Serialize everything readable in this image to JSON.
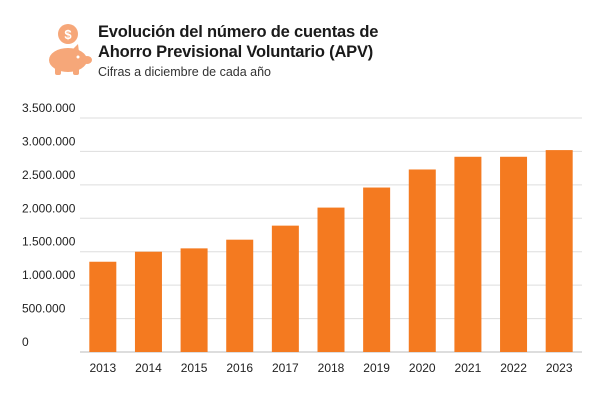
{
  "header": {
    "title_line1": "Evolución del número de cuentas de",
    "title_line2": "Ahorro Previsional Voluntario (APV)",
    "subtitle": "Cifras a diciembre de cada año",
    "logo_icon": "piggy-bank-icon",
    "logo_symbol": "$"
  },
  "colors": {
    "bar": "#F47A20",
    "logo": "#F6A779",
    "grid": "#DDDDDD",
    "axis_text": "#222222"
  },
  "chart_data": {
    "type": "bar",
    "title": "Evolución del número de cuentas de Ahorro Previsional Voluntario (APV)",
    "subtitle": "Cifras a diciembre de cada año",
    "xlabel": "",
    "ylabel": "",
    "categories": [
      "2013",
      "2014",
      "2015",
      "2016",
      "2017",
      "2018",
      "2019",
      "2020",
      "2021",
      "2022",
      "2023"
    ],
    "values": [
      1350000,
      1500000,
      1550000,
      1680000,
      1890000,
      2160000,
      2460000,
      2730000,
      2920000,
      2920000,
      3020000
    ],
    "ylim": [
      0,
      3500000
    ],
    "yticks": [
      0,
      500000,
      1000000,
      1500000,
      2000000,
      2500000,
      3000000,
      3500000
    ],
    "ytick_labels": [
      "0",
      "500.000",
      "1.000.000",
      "1.500.000",
      "2.000.000",
      "2.500.000",
      "3.000.000",
      "3.500.000"
    ],
    "grid": true,
    "legend": "none"
  }
}
